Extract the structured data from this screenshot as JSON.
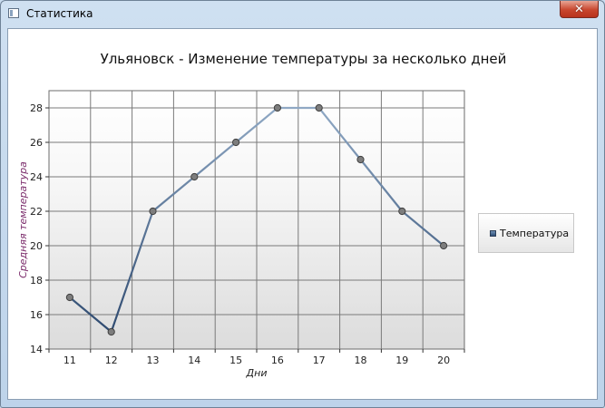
{
  "window": {
    "title": "Статистика",
    "close_glyph": "✕"
  },
  "chart_data": {
    "type": "line",
    "title": "Ульяновск - Изменение температуры за несколько дней",
    "xlabel": "Дни",
    "ylabel": "Средняя температура",
    "categories": [
      "11",
      "12",
      "13",
      "14",
      "15",
      "16",
      "17",
      "18",
      "19",
      "20"
    ],
    "series": [
      {
        "name": "Температура",
        "values": [
          17,
          15,
          22,
          24,
          26,
          28,
          28,
          25,
          22,
          20
        ]
      }
    ],
    "ylim": [
      14,
      29
    ],
    "yticks": [
      14,
      16,
      18,
      20,
      22,
      24,
      26,
      28
    ],
    "grid": true,
    "legend": "right"
  }
}
